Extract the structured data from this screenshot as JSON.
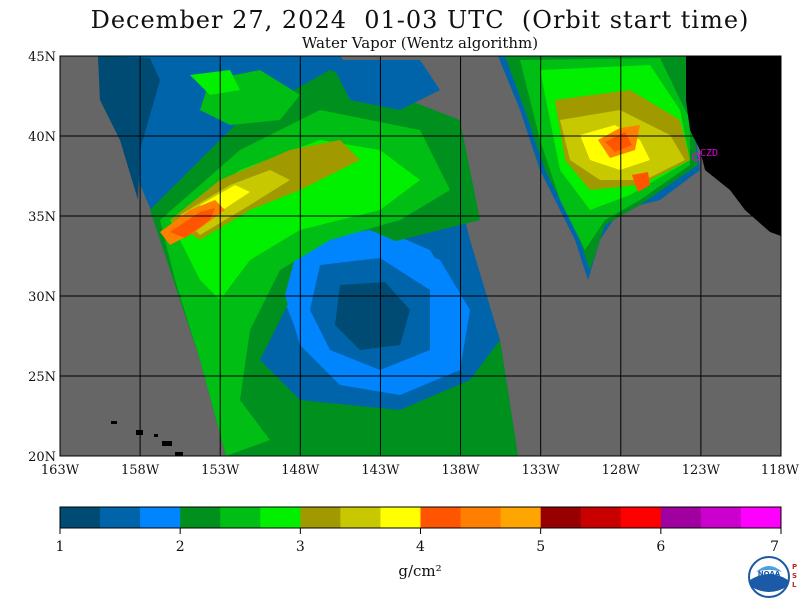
{
  "header": {
    "title": "December 27, 2024  01-03 UTC  (Orbit start time)",
    "subtitle": "Water Vapor (Wentz algorithm)"
  },
  "map": {
    "lat_labels": [
      "45N",
      "40N",
      "35N",
      "30N",
      "25N",
      "20N"
    ],
    "lon_labels": [
      "163W",
      "158W",
      "153W",
      "148W",
      "143W",
      "138W",
      "133W",
      "128W",
      "123W",
      "118W"
    ],
    "lat_values": [
      45,
      40,
      35,
      30,
      25,
      20
    ],
    "lon_values": [
      -163,
      -158,
      -153,
      -148,
      -143,
      -138,
      -133,
      -128,
      -123,
      -118
    ],
    "station_label": "CZD",
    "colors": {
      "no_data": "#666666",
      "land": "#000000",
      "grid": "#000000",
      "station": "#e000e0"
    }
  },
  "colorbar": {
    "ticks": [
      "1",
      "2",
      "3",
      "4",
      "5",
      "6",
      "7"
    ],
    "units": "g/cm²",
    "colors": [
      "#004b73",
      "#0064aa",
      "#0085ff",
      "#00901e",
      "#00be14",
      "#00f000",
      "#a09a00",
      "#c8c800",
      "#ffff00",
      "#ff5500",
      "#ff7f00",
      "#ffa500",
      "#960000",
      "#c80000",
      "#ff0000",
      "#a000a0",
      "#cc00cc",
      "#ff00ff"
    ]
  },
  "logo": {
    "icon": "noaa-logo-icon",
    "text": "NOAA",
    "side_text": "PSL"
  }
}
